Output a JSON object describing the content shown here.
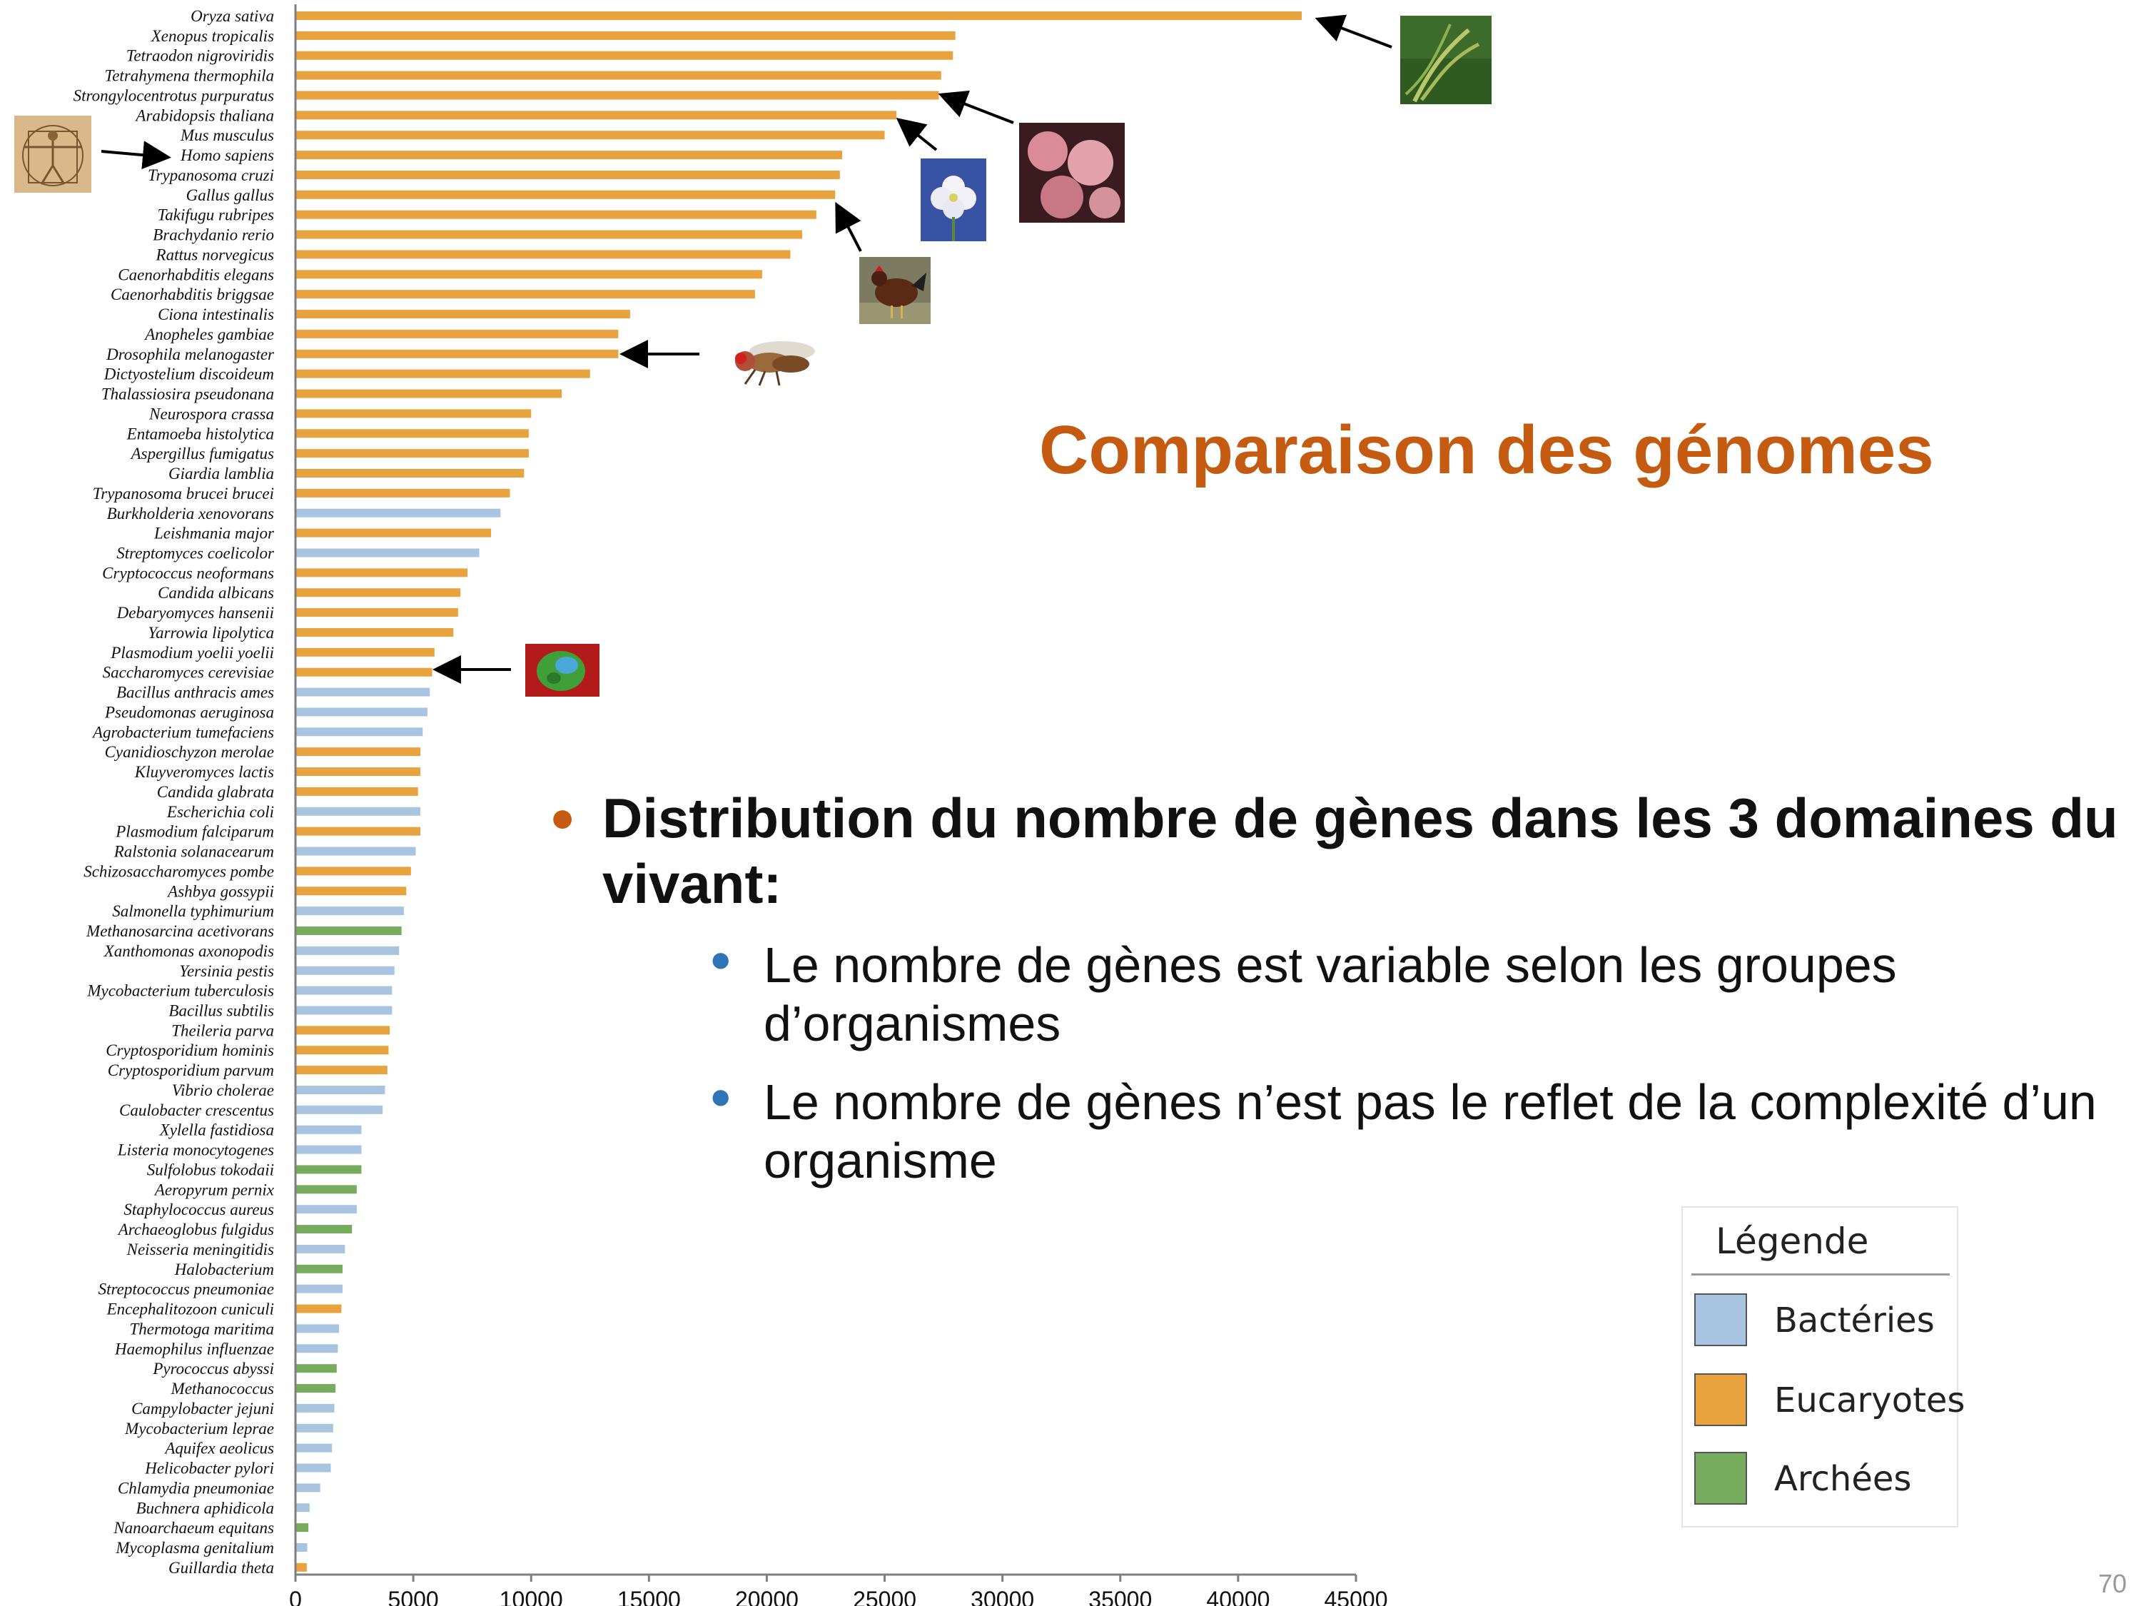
{
  "slide": {
    "title": "Comparaison des génomes",
    "bullet_main": "Distribution du nombre de gènes dans les 3 domaines du vivant:",
    "sub_bullets": [
      "Le nombre de gènes est variable selon les groupes d’organismes",
      "Le nombre de gènes n’est pas le reflet de la complexité d’un organisme"
    ],
    "page_number": "70"
  },
  "legend": {
    "title": "Légende",
    "items": [
      {
        "label": "Bactéries",
        "color": "#A9C4E0"
      },
      {
        "label": "Eucaryotes",
        "color": "#E8A23E"
      },
      {
        "label": "Archées",
        "color": "#77AC5F"
      }
    ]
  },
  "pictures": [
    "rice-photo",
    "sea-urchin-photo",
    "arabidopsis-flower-photo",
    "chicken-photo",
    "vitruvian-man-drawing",
    "fruit-fly-photo",
    "yeast-cell-photo"
  ],
  "chart_data": {
    "type": "bar",
    "orientation": "horizontal",
    "xlim": [
      0,
      45000
    ],
    "xticks": [
      "0",
      "5000",
      "10000",
      "15000",
      "20000",
      "25000",
      "30000",
      "35000",
      "40000",
      "45000"
    ],
    "series_colors": {
      "Bactéries": "#A9C4E0",
      "Eucaryotes": "#E8A23E",
      "Archées": "#77AC5F"
    },
    "bars": [
      {
        "name": "Oryza sativa",
        "value": 42700,
        "group": "Eucaryotes"
      },
      {
        "name": "Xenopus tropicalis",
        "value": 28000,
        "group": "Eucaryotes"
      },
      {
        "name": "Tetraodon nigroviridis",
        "value": 27900,
        "group": "Eucaryotes"
      },
      {
        "name": "Tetrahymena thermophila",
        "value": 27400,
        "group": "Eucaryotes"
      },
      {
        "name": "Strongylocentrotus purpuratus",
        "value": 27300,
        "group": "Eucaryotes"
      },
      {
        "name": "Arabidopsis thaliana",
        "value": 25500,
        "group": "Eucaryotes"
      },
      {
        "name": "Mus musculus",
        "value": 25000,
        "group": "Eucaryotes"
      },
      {
        "name": "Homo sapiens",
        "value": 23200,
        "group": "Eucaryotes"
      },
      {
        "name": "Trypanosoma cruzi",
        "value": 23100,
        "group": "Eucaryotes"
      },
      {
        "name": "Gallus gallus",
        "value": 22900,
        "group": "Eucaryotes"
      },
      {
        "name": "Takifugu rubripes",
        "value": 22100,
        "group": "Eucaryotes"
      },
      {
        "name": "Brachydanio rerio",
        "value": 21500,
        "group": "Eucaryotes"
      },
      {
        "name": "Rattus norvegicus",
        "value": 21000,
        "group": "Eucaryotes"
      },
      {
        "name": "Caenorhabditis elegans",
        "value": 19800,
        "group": "Eucaryotes"
      },
      {
        "name": "Caenorhabditis briggsae",
        "value": 19500,
        "group": "Eucaryotes"
      },
      {
        "name": "Ciona intestinalis",
        "value": 14200,
        "group": "Eucaryotes"
      },
      {
        "name": "Anopheles gambiae",
        "value": 13700,
        "group": "Eucaryotes"
      },
      {
        "name": "Drosophila melanogaster",
        "value": 13700,
        "group": "Eucaryotes"
      },
      {
        "name": "Dictyostelium discoideum",
        "value": 12500,
        "group": "Eucaryotes"
      },
      {
        "name": "Thalassiosira pseudonana",
        "value": 11300,
        "group": "Eucaryotes"
      },
      {
        "name": "Neurospora crassa",
        "value": 10000,
        "group": "Eucaryotes"
      },
      {
        "name": "Entamoeba histolytica",
        "value": 9900,
        "group": "Eucaryotes"
      },
      {
        "name": "Aspergillus fumigatus",
        "value": 9900,
        "group": "Eucaryotes"
      },
      {
        "name": "Giardia lamblia",
        "value": 9700,
        "group": "Eucaryotes"
      },
      {
        "name": "Trypanosoma brucei brucei",
        "value": 9100,
        "group": "Eucaryotes"
      },
      {
        "name": "Burkholderia xenovorans",
        "value": 8700,
        "group": "Bactéries"
      },
      {
        "name": "Leishmania major",
        "value": 8300,
        "group": "Eucaryotes"
      },
      {
        "name": "Streptomyces coelicolor",
        "value": 7800,
        "group": "Bactéries"
      },
      {
        "name": "Cryptococcus neoformans",
        "value": 7300,
        "group": "Eucaryotes"
      },
      {
        "name": "Candida albicans",
        "value": 7000,
        "group": "Eucaryotes"
      },
      {
        "name": "Debaryomyces hansenii",
        "value": 6900,
        "group": "Eucaryotes"
      },
      {
        "name": "Yarrowia lipolytica",
        "value": 6700,
        "group": "Eucaryotes"
      },
      {
        "name": "Plasmodium yoelii yoelii",
        "value": 5900,
        "group": "Eucaryotes"
      },
      {
        "name": "Saccharomyces cerevisiae",
        "value": 5800,
        "group": "Eucaryotes"
      },
      {
        "name": "Bacillus anthracis ames",
        "value": 5700,
        "group": "Bactéries"
      },
      {
        "name": "Pseudomonas aeruginosa",
        "value": 5600,
        "group": "Bactéries"
      },
      {
        "name": "Agrobacterium tumefaciens",
        "value": 5400,
        "group": "Bactéries"
      },
      {
        "name": "Cyanidioschyzon merolae",
        "value": 5300,
        "group": "Eucaryotes"
      },
      {
        "name": "Kluyveromyces lactis",
        "value": 5300,
        "group": "Eucaryotes"
      },
      {
        "name": "Candida glabrata",
        "value": 5200,
        "group": "Eucaryotes"
      },
      {
        "name": "Escherichia coli",
        "value": 5300,
        "group": "Bactéries"
      },
      {
        "name": "Plasmodium falciparum",
        "value": 5300,
        "group": "Eucaryotes"
      },
      {
        "name": "Ralstonia solanacearum",
        "value": 5100,
        "group": "Bactéries"
      },
      {
        "name": "Schizosaccharomyces pombe",
        "value": 4900,
        "group": "Eucaryotes"
      },
      {
        "name": "Ashbya gossypii",
        "value": 4700,
        "group": "Eucaryotes"
      },
      {
        "name": "Salmonella typhimurium",
        "value": 4600,
        "group": "Bactéries"
      },
      {
        "name": "Methanosarcina acetivorans",
        "value": 4500,
        "group": "Archées"
      },
      {
        "name": "Xanthomonas axonopodis",
        "value": 4400,
        "group": "Bactéries"
      },
      {
        "name": "Yersinia pestis",
        "value": 4200,
        "group": "Bactéries"
      },
      {
        "name": "Mycobacterium tuberculosis",
        "value": 4100,
        "group": "Bactéries"
      },
      {
        "name": "Bacillus subtilis",
        "value": 4100,
        "group": "Bactéries"
      },
      {
        "name": "Theileria parva",
        "value": 4000,
        "group": "Eucaryotes"
      },
      {
        "name": "Cryptosporidium hominis",
        "value": 3950,
        "group": "Eucaryotes"
      },
      {
        "name": "Cryptosporidium parvum",
        "value": 3900,
        "group": "Eucaryotes"
      },
      {
        "name": "Vibrio cholerae",
        "value": 3800,
        "group": "Bactéries"
      },
      {
        "name": "Caulobacter crescentus",
        "value": 3700,
        "group": "Bactéries"
      },
      {
        "name": "Xylella fastidiosa",
        "value": 2800,
        "group": "Bactéries"
      },
      {
        "name": "Listeria monocytogenes",
        "value": 2800,
        "group": "Bactéries"
      },
      {
        "name": "Sulfolobus tokodaii",
        "value": 2800,
        "group": "Archées"
      },
      {
        "name": "Aeropyrum pernix",
        "value": 2600,
        "group": "Archées"
      },
      {
        "name": "Staphylococcus aureus",
        "value": 2600,
        "group": "Bactéries"
      },
      {
        "name": "Archaeoglobus fulgidus",
        "value": 2400,
        "group": "Archées"
      },
      {
        "name": "Neisseria meningitidis",
        "value": 2100,
        "group": "Bactéries"
      },
      {
        "name": "Halobacterium",
        "value": 2000,
        "group": "Archées"
      },
      {
        "name": "Streptococcus pneumoniae",
        "value": 2000,
        "group": "Bactéries"
      },
      {
        "name": "Encephalitozoon cuniculi",
        "value": 1950,
        "group": "Eucaryotes"
      },
      {
        "name": "Thermotoga maritima",
        "value": 1850,
        "group": "Bactéries"
      },
      {
        "name": "Haemophilus influenzae",
        "value": 1800,
        "group": "Bactéries"
      },
      {
        "name": "Pyrococcus abyssi",
        "value": 1750,
        "group": "Archées"
      },
      {
        "name": "Methanococcus",
        "value": 1700,
        "group": "Archées"
      },
      {
        "name": "Campylobacter jejuni",
        "value": 1650,
        "group": "Bactéries"
      },
      {
        "name": "Mycobacterium leprae",
        "value": 1600,
        "group": "Bactéries"
      },
      {
        "name": "Aquifex aeolicus",
        "value": 1550,
        "group": "Bactéries"
      },
      {
        "name": "Helicobacter pylori",
        "value": 1500,
        "group": "Bactéries"
      },
      {
        "name": "Chlamydia pneumoniae",
        "value": 1050,
        "group": "Bactéries"
      },
      {
        "name": "Buchnera aphidicola",
        "value": 600,
        "group": "Bactéries"
      },
      {
        "name": "Nanoarchaeum equitans",
        "value": 550,
        "group": "Archées"
      },
      {
        "name": "Mycoplasma genitalium",
        "value": 500,
        "group": "Bactéries"
      },
      {
        "name": "Guillardia theta",
        "value": 480,
        "group": "Eucaryotes"
      }
    ]
  }
}
